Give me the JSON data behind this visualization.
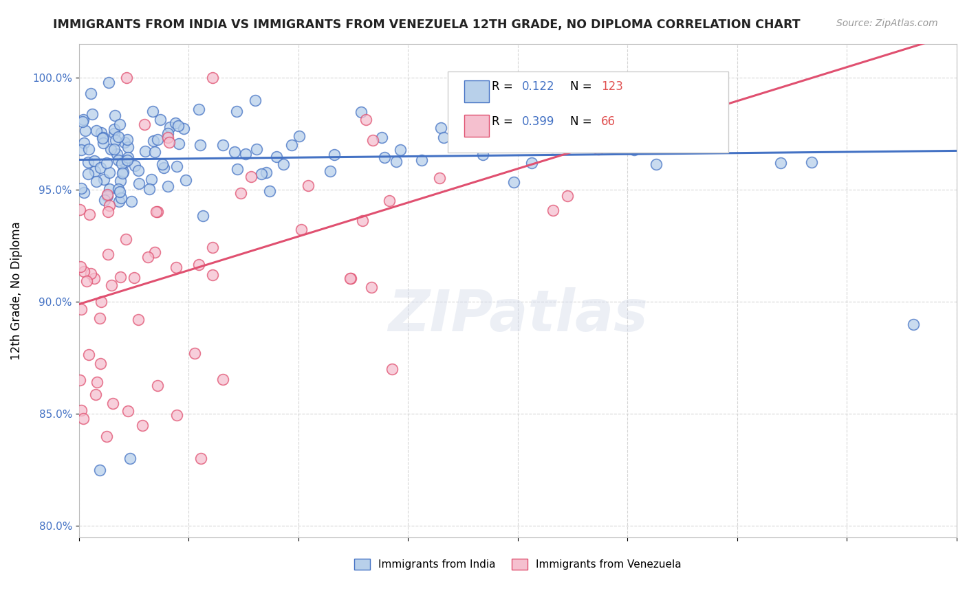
{
  "title": "IMMIGRANTS FROM INDIA VS IMMIGRANTS FROM VENEZUELA 12TH GRADE, NO DIPLOMA CORRELATION CHART",
  "source": "Source: ZipAtlas.com",
  "ylabel": "12th Grade, No Diploma",
  "xlim": [
    0.0,
    80.0
  ],
  "ylim": [
    79.5,
    101.5
  ],
  "ytick_vals": [
    80,
    85,
    90,
    95,
    100
  ],
  "ytick_labels": [
    "80.0%",
    "85.0%",
    "90.0%",
    "95.0%",
    "100.0%"
  ],
  "watermark": "ZIPatlas",
  "R_india": "0.122",
  "N_india": "123",
  "R_venezuela": "0.399",
  "N_venezuela": "66",
  "line_india_color": "#4472c4",
  "line_venezuela_color": "#e05070",
  "scatter_india_fill": "#b8d0ea",
  "scatter_india_edge": "#4472c4",
  "scatter_venezuela_fill": "#f5c0cf",
  "scatter_venezuela_edge": "#e05070",
  "tick_label_color": "#4472c4",
  "grid_color": "#cccccc",
  "title_color": "#222222",
  "source_color": "#999999",
  "legend_label_india": "Immigrants from India",
  "legend_label_venezuela": "Immigrants from Venezuela"
}
